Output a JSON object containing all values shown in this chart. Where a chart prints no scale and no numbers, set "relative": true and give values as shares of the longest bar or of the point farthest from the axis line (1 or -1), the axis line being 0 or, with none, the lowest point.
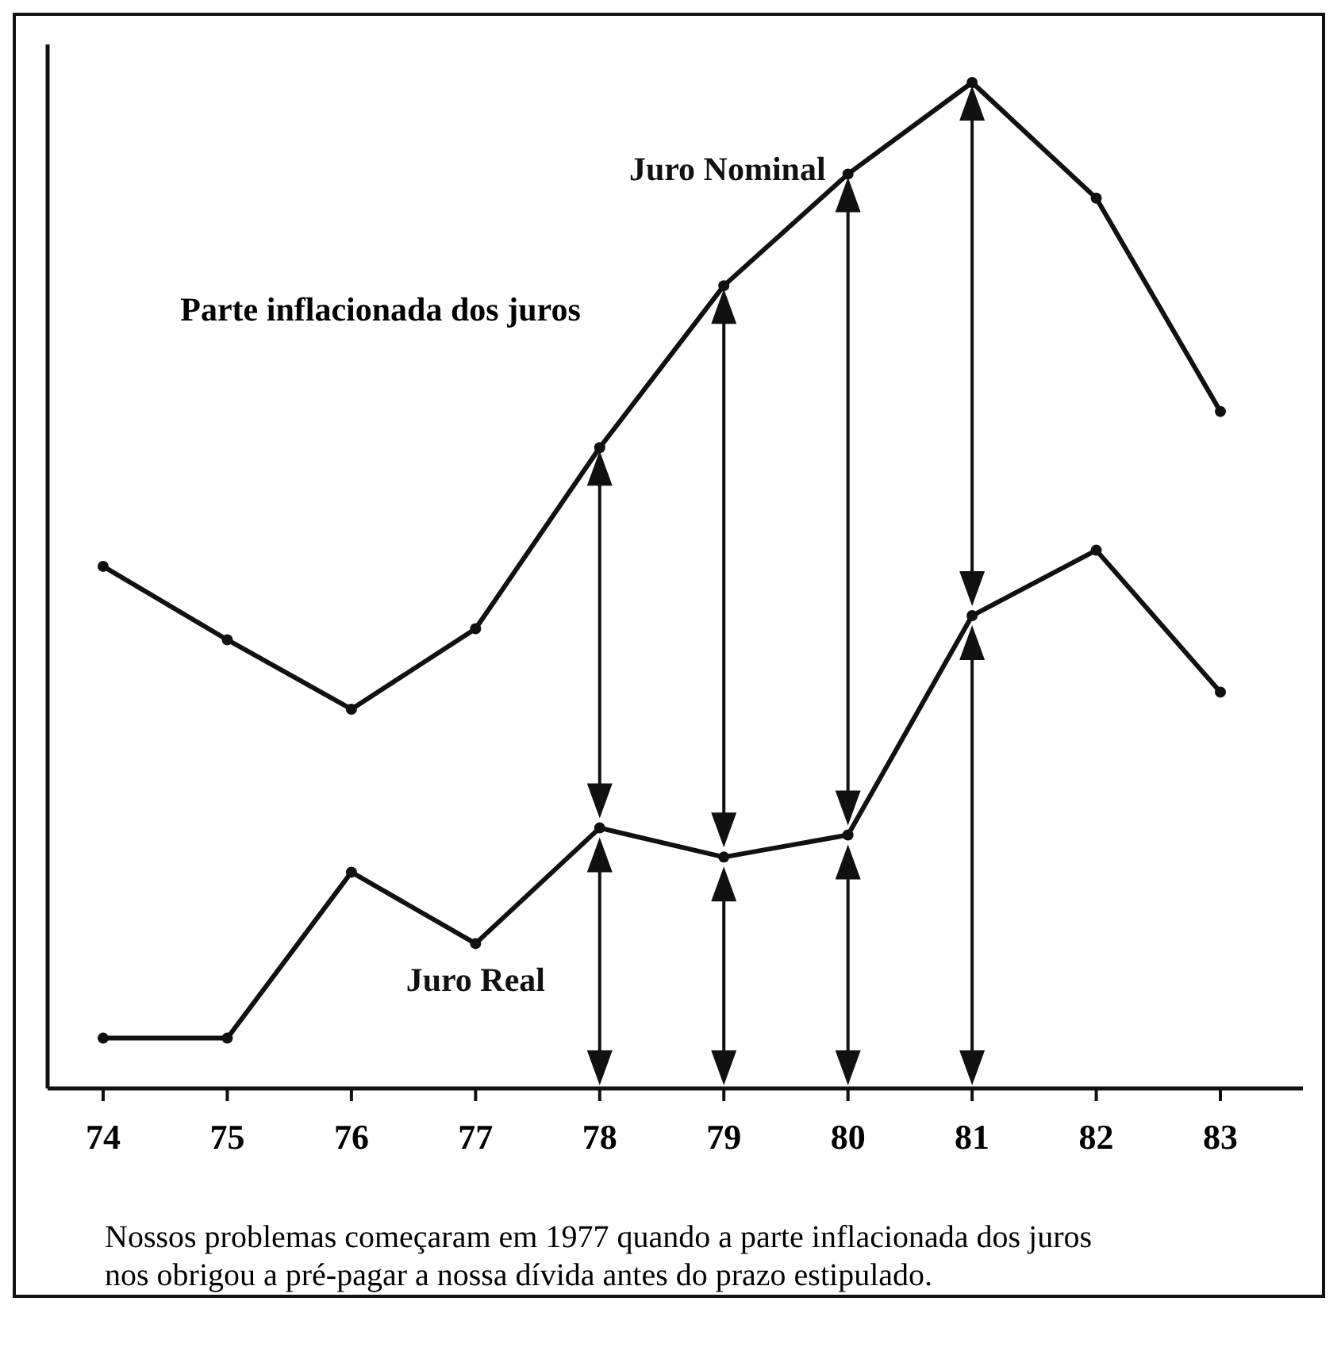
{
  "chart_data": {
    "type": "line",
    "relative": true,
    "categories": [
      "74",
      "75",
      "76",
      "77",
      "78",
      "79",
      "80",
      "81",
      "82",
      "83"
    ],
    "series": [
      {
        "name": "Juro Nominal",
        "color": "#111111",
        "values": [
          0.519,
          0.446,
          0.377,
          0.457,
          0.637,
          0.798,
          0.909,
          1,
          0.885,
          0.673
        ]
      },
      {
        "name": "Juro Real",
        "color": "#111111",
        "values": [
          0.05,
          0.05,
          0.215,
          0.144,
          0.259,
          0.23,
          0.252,
          0.47,
          0.535,
          0.394
        ]
      }
    ],
    "marker": "circle",
    "line_style": "solid",
    "legend": false,
    "annotations": [
      "Parte inflacionada dos juros",
      "Nossos problemas começaram em 1977 quando a parte inflacionada dos juros nos obrigou a pré-pagar a nossa dívida antes do prazo estipulado."
    ]
  }
}
